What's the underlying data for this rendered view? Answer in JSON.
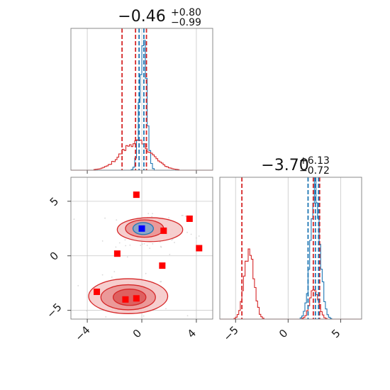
{
  "colors": {
    "blue": "#1f77b4",
    "red": "#d62728",
    "grid": "#c8c8c8",
    "marker_red": "#ff0000",
    "marker_blue": "#0000ff"
  },
  "chart_data": [
    {
      "panel": "top-left-1d-histogram",
      "type": "histogram",
      "title_main": "−0.46",
      "title_sup": "+0.80",
      "title_sub": "−0.99",
      "xlim": [
        -5.2,
        5.2
      ],
      "grid": true,
      "series": [
        {
          "color": "#1f77b4",
          "center": 0.1,
          "width": 0.25,
          "peak": 1.0
        },
        {
          "color": "#d62728",
          "center": -0.4,
          "width": 1.1,
          "peak": 0.22
        }
      ],
      "vlines": [
        {
          "color": "#d62728",
          "x": -1.45
        },
        {
          "color": "#d62728",
          "x": -0.46
        },
        {
          "color": "#d62728",
          "x": 0.34
        },
        {
          "color": "#1f77b4",
          "x": -0.2
        },
        {
          "color": "#1f77b4",
          "x": 0.15
        }
      ]
    },
    {
      "panel": "bottom-left-2d-contour",
      "type": "scatter",
      "xlim": [
        -5.2,
        5.2
      ],
      "ylim": [
        -5.8,
        7.2
      ],
      "x_ticks": [
        "−4",
        "0",
        "4"
      ],
      "x_tick_values": [
        -4,
        0,
        4
      ],
      "y_ticks": [
        "5",
        "0",
        "−5"
      ],
      "y_tick_values": [
        5,
        0,
        -5
      ],
      "grid": true,
      "red_square_markers": [
        {
          "x": -0.4,
          "y": 5.6
        },
        {
          "x": 3.5,
          "y": 3.4
        },
        {
          "x": 1.6,
          "y": 2.3
        },
        {
          "x": 4.2,
          "y": 0.7
        },
        {
          "x": -1.8,
          "y": 0.2
        },
        {
          "x": 1.5,
          "y": -0.9
        },
        {
          "x": -3.3,
          "y": -3.3
        },
        {
          "x": -1.2,
          "y": -4.0
        },
        {
          "x": -0.4,
          "y": -3.9
        }
      ],
      "blue_square_markers": [
        {
          "x": 0.0,
          "y": 2.5
        }
      ],
      "contours": [
        {
          "color": "#d62728",
          "cx": -1.0,
          "cy": -3.7,
          "rx": 2.9,
          "ry": 1.6,
          "fill": "#f4c6c6"
        },
        {
          "color": "#d62728",
          "cx": -1.0,
          "cy": -3.8,
          "rx": 2.0,
          "ry": 1.15,
          "fill": "#e98f8f"
        },
        {
          "color": "#d62728",
          "cx": -0.9,
          "cy": -3.8,
          "rx": 1.2,
          "ry": 0.75,
          "fill": "#dc5656"
        },
        {
          "color": "#d62728",
          "cx": 0.6,
          "cy": 2.4,
          "rx": 2.4,
          "ry": 1.1,
          "fill": "#f4c6c6"
        },
        {
          "color": "#d62728",
          "cx": 0.2,
          "cy": 2.5,
          "rx": 1.4,
          "ry": 0.8,
          "fill": "#e98f8f"
        },
        {
          "color": "#1f77b4",
          "cx": 0.1,
          "cy": 2.5,
          "rx": 0.75,
          "ry": 0.55,
          "fill": "#7fa7cf"
        }
      ]
    },
    {
      "panel": "bottom-right-1d-histogram",
      "type": "histogram",
      "title_main": "−3.70",
      "title_sup": "+6.13",
      "title_sub": "−0.72",
      "xlim": [
        -6.5,
        7.0
      ],
      "x_ticks": [
        "−5",
        "0",
        "5"
      ],
      "x_tick_values": [
        -5,
        0,
        5
      ],
      "grid": true,
      "series": [
        {
          "color": "#1f77b4",
          "center": 2.6,
          "width": 0.45,
          "peak": 1.0
        },
        {
          "color": "#d62728",
          "center": -3.7,
          "width": 0.45,
          "peak": 0.55
        },
        {
          "color": "#d62728",
          "center": 2.5,
          "width": 0.4,
          "peak": 0.25
        }
      ],
      "vlines": [
        {
          "color": "#d62728",
          "x": -4.4
        },
        {
          "color": "#d62728",
          "x": 2.4
        },
        {
          "color": "#d62728",
          "x": 3.0
        },
        {
          "color": "#1f77b4",
          "x": 1.9
        },
        {
          "color": "#1f77b4",
          "x": 2.6
        },
        {
          "color": "#1f77b4",
          "x": 2.9
        }
      ]
    }
  ]
}
